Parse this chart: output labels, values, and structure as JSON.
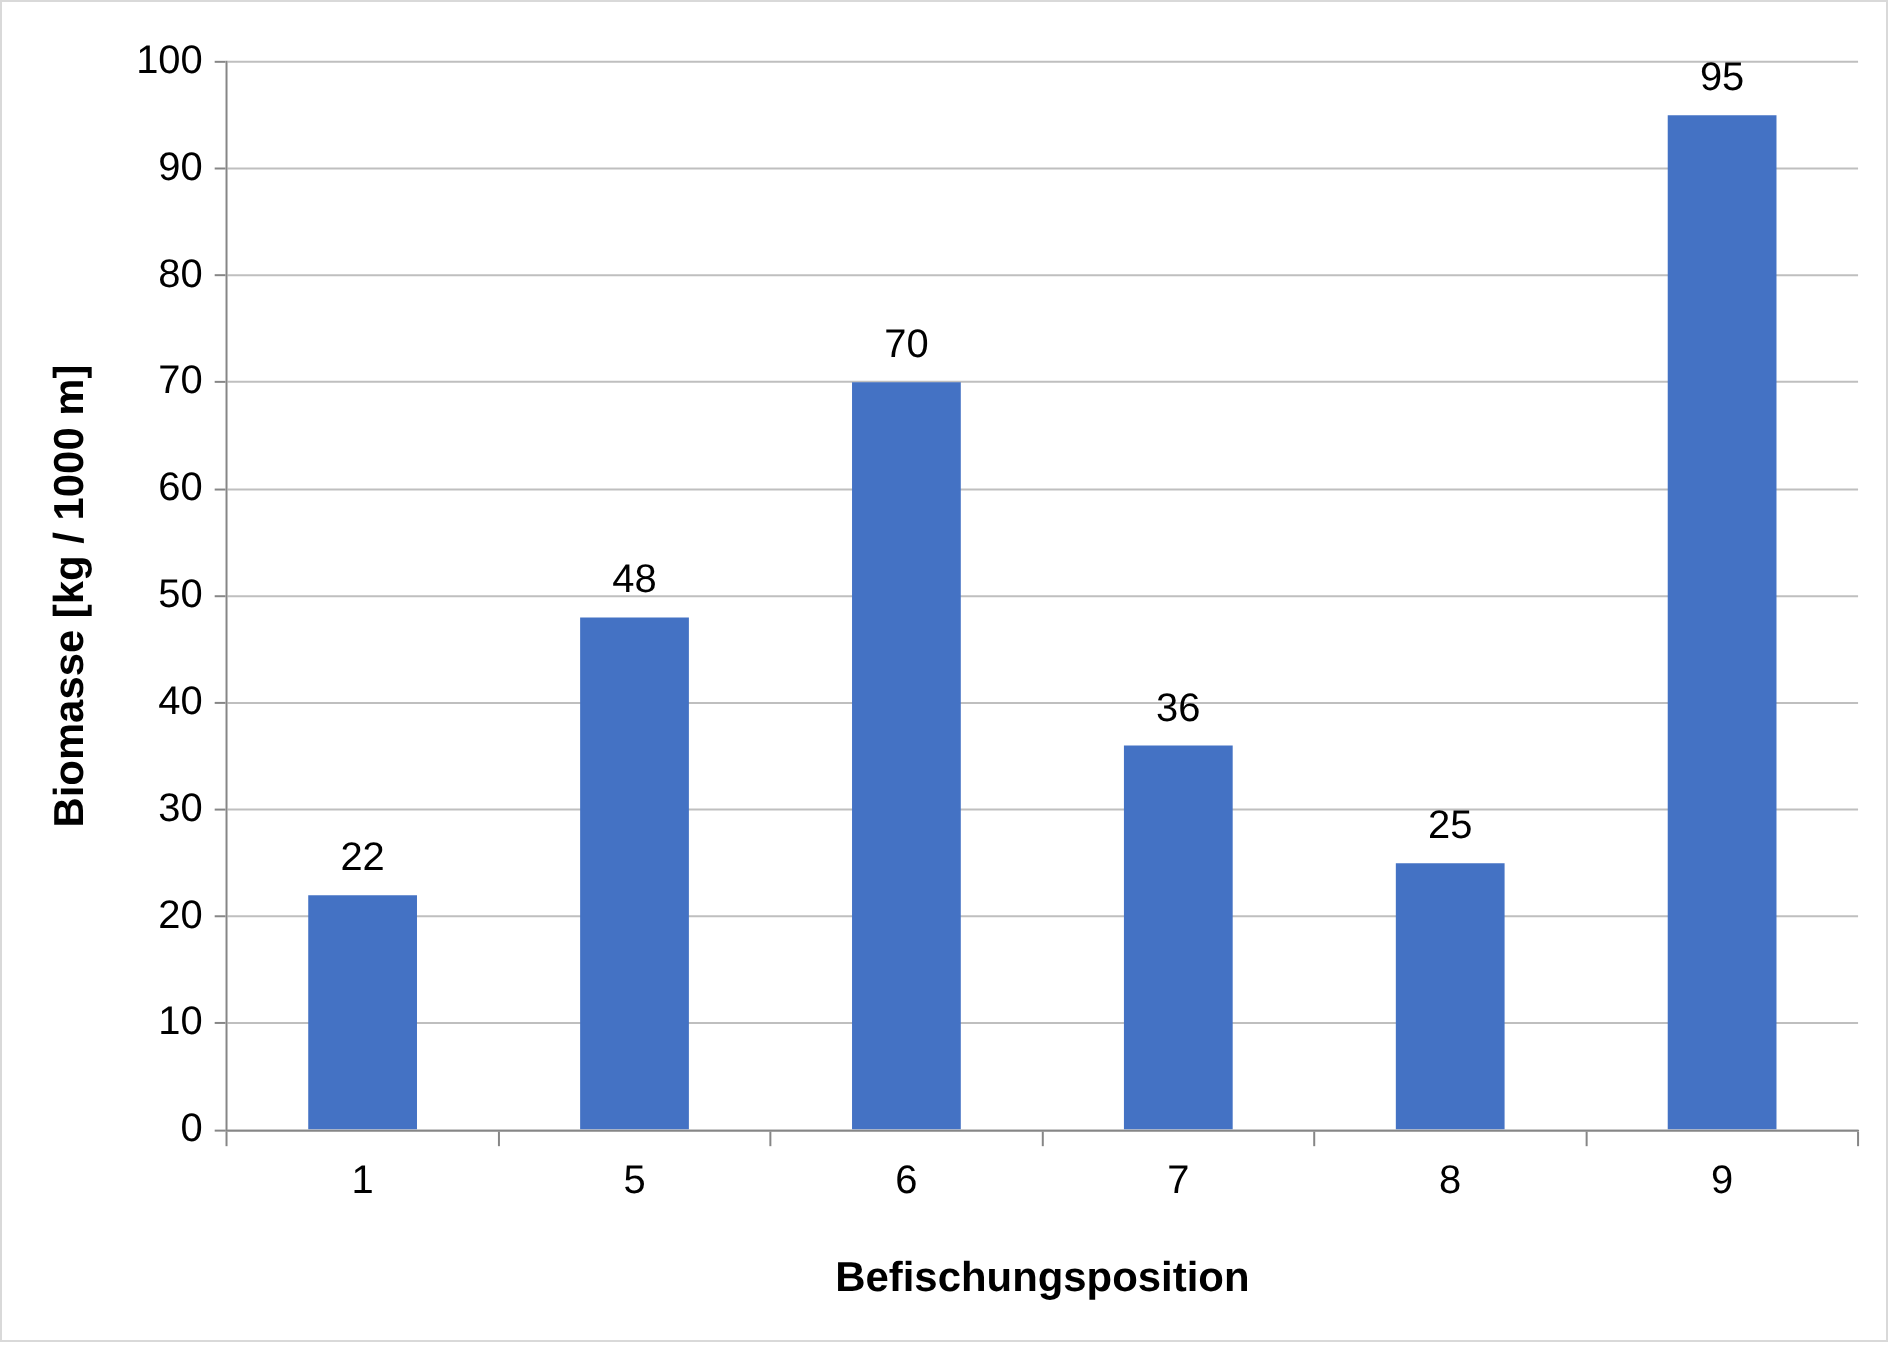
{
  "chart_data": {
    "type": "bar",
    "xlabel": "Befischungsposition",
    "ylabel": "Biomasse [kg / 1000 m]",
    "categories": [
      "1",
      "5",
      "6",
      "7",
      "8",
      "9"
    ],
    "values": [
      22,
      48,
      70,
      36,
      25,
      95
    ],
    "color": "#4472c4",
    "ylim": [
      0,
      100
    ],
    "yticks": [
      0,
      10,
      20,
      30,
      40,
      50,
      60,
      70,
      80,
      90,
      100
    ],
    "grid": "y",
    "data_labels": true,
    "legend": false
  }
}
